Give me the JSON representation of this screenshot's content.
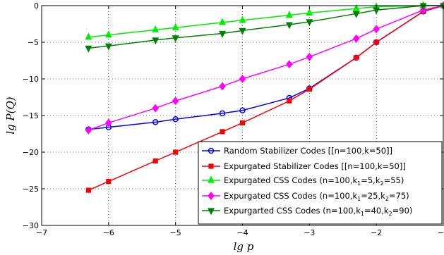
{
  "chart_data": {
    "type": "line",
    "xlabel": "lg p",
    "ylabel": "lg P(Q)",
    "xlim": [
      -7,
      -1
    ],
    "ylim": [
      -30,
      0
    ],
    "xticks": [
      "−7",
      "−6",
      "−5",
      "−4",
      "−3",
      "−2",
      "−1"
    ],
    "yticks": [
      "0",
      "−5",
      "−10",
      "−15",
      "−20",
      "−25",
      "−30"
    ],
    "grid": true,
    "legend_position": "bottom-right",
    "series": [
      {
        "name": "Random Stabilizer Codes [[n=100,k=50]]",
        "color": "#0000ff",
        "marker": "circle",
        "x": [
          -6.3,
          -6.0,
          -5.3,
          -5.0,
          -4.3,
          -4.0,
          -3.3,
          -3.0,
          -2.3,
          -2.0,
          -1.3,
          -1.0
        ],
        "y": [
          -16.9,
          -16.6,
          -15.9,
          -15.5,
          -14.7,
          -14.3,
          -12.6,
          -11.3,
          -7.1,
          -5.0,
          -0.8,
          0.0
        ]
      },
      {
        "name": "Expurgated Stabilizer Codes  [[n=100,k=50]]",
        "color": "#ff0000",
        "marker": "square",
        "x": [
          -6.3,
          -6.0,
          -5.3,
          -5.0,
          -4.3,
          -4.0,
          -3.3,
          -3.0,
          -2.3,
          -2.0,
          -1.3,
          -1.0
        ],
        "y": [
          -25.2,
          -24.0,
          -21.2,
          -20.0,
          -17.2,
          -16.0,
          -13.0,
          -11.4,
          -7.1,
          -5.0,
          -0.8,
          0.0
        ]
      },
      {
        "name": "Expurgated CSS Codes (n=100,k1=5,k2=55)",
        "color": "#00ee00",
        "marker": "triangle-up",
        "x": [
          -6.3,
          -6.0,
          -5.3,
          -5.0,
          -4.3,
          -4.0,
          -3.3,
          -3.0,
          -2.3,
          -2.0,
          -1.3,
          -1.0
        ],
        "y": [
          -4.3,
          -4.0,
          -3.3,
          -3.0,
          -2.3,
          -2.0,
          -1.3,
          -1.0,
          -0.4,
          -0.15,
          0.0,
          0.0
        ]
      },
      {
        "name": "Expurgated CSS Codes (n=100,k1=25,k2=75)",
        "color": "#ff00ff",
        "marker": "diamond",
        "x": [
          -6.3,
          -6.0,
          -5.3,
          -5.0,
          -4.3,
          -4.0,
          -3.3,
          -3.0,
          -2.3,
          -2.0,
          -1.3,
          -1.0
        ],
        "y": [
          -17.0,
          -16.0,
          -14.0,
          -13.0,
          -11.0,
          -10.0,
          -8.0,
          -7.0,
          -4.5,
          -3.2,
          -0.6,
          0.0
        ]
      },
      {
        "name": "Expurgarted CSS Codes (n=100,k1=40,k2=90)",
        "color": "#008000",
        "marker": "triangle-down",
        "x": [
          -6.3,
          -6.0,
          -5.3,
          -5.0,
          -4.3,
          -4.0,
          -3.3,
          -3.0,
          -2.3,
          -2.0,
          -1.3,
          -1.0
        ],
        "y": [
          -5.8,
          -5.5,
          -4.7,
          -4.4,
          -3.8,
          -3.4,
          -2.6,
          -2.2,
          -1.1,
          -0.6,
          0.0,
          0.0
        ]
      }
    ],
    "legend": [
      {
        "pre": "Random Stabilizer Codes [[n=100,k=50]]",
        "parts": []
      },
      {
        "pre": "Expurgated Stabilizer Codes  [[n=100,k=50]]",
        "parts": []
      },
      {
        "pre": "Expurgated CSS Codes (n=100,k",
        "parts": [
          [
            "1",
            "=5,k"
          ],
          [
            "2",
            "=55)"
          ]
        ]
      },
      {
        "pre": "Expurgated CSS Codes (n=100,k",
        "parts": [
          [
            "1",
            "=25,k"
          ],
          [
            "2",
            "=75)"
          ]
        ]
      },
      {
        "pre": "Expurgarted CSS Codes (n=100,k",
        "parts": [
          [
            "1",
            "=40,k"
          ],
          [
            "2",
            "=90)"
          ]
        ]
      }
    ]
  }
}
